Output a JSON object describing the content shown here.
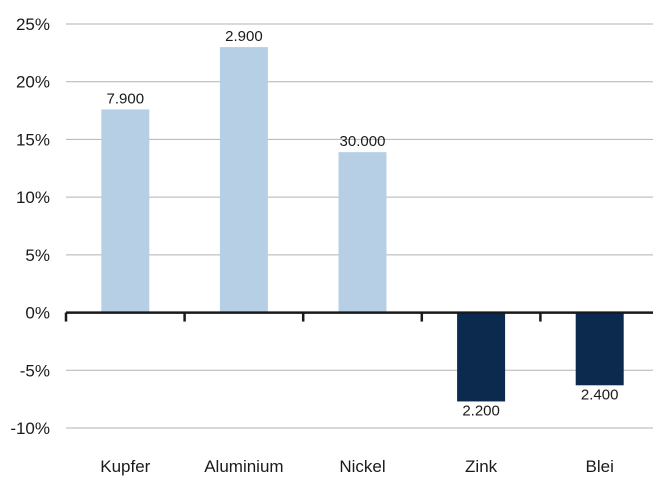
{
  "chart_data": {
    "type": "bar",
    "categories": [
      "Kupfer",
      "Aluminium",
      "Nickel",
      "Zink",
      "Blei"
    ],
    "values": [
      17.6,
      23.0,
      13.9,
      -7.7,
      -6.3
    ],
    "unit": "%",
    "data_labels": [
      "7.900",
      "2.900",
      "30.000",
      "2.200",
      "2.400"
    ],
    "ylim": [
      -10,
      25
    ],
    "yticks": [
      25,
      20,
      15,
      10,
      5,
      0,
      -5,
      -10
    ],
    "ytick_labels": [
      "25%",
      "20%",
      "15%",
      "10%",
      "5%",
      "0%",
      "-5%",
      "-10%"
    ],
    "grid": true,
    "legend": "none",
    "colors": {
      "positive": "#b7cfe4",
      "negative": "#0c2a4e",
      "grid": "#b3b3b3",
      "axis": "#1a1a1a"
    }
  }
}
